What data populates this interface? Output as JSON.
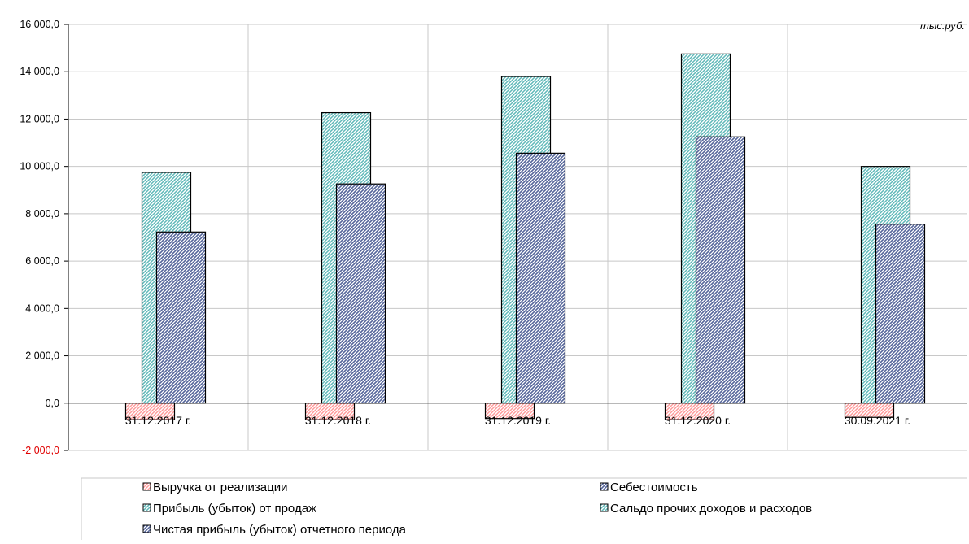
{
  "chart_data": {
    "type": "bar",
    "units_label": "тыс.руб.",
    "categories": [
      "31.12.2017 г.",
      "31.12.2018 г.",
      "31.12.2019 г.",
      "31.12.2020 г.",
      "30.09.2021 г."
    ],
    "ylim": [
      -2000,
      16000
    ],
    "yticks": [
      16000,
      14000,
      12000,
      10000,
      8000,
      6000,
      4000,
      2000,
      0,
      -2000
    ],
    "ytick_labels": [
      "16 000,0",
      "14 000,0",
      "12 000,0",
      "10 000,0",
      "8 000,0",
      "6 000,0",
      "4 000,0",
      "2 000,0",
      "0,0",
      "-2 000,0"
    ],
    "grid": true,
    "legend_position": "bottom",
    "series": [
      {
        "name": "Выручка от реализации",
        "color": "#ff9999",
        "values": [
          -700,
          -700,
          -650,
          -700,
          -600
        ]
      },
      {
        "name": "Прибыль (убыток) от продаж",
        "color": "#66cccc",
        "values": [
          9750,
          12270,
          13800,
          14750,
          10000
        ]
      },
      {
        "name": "Чистая прибыль (убыток) отчетного периода",
        "color": "#6677aa",
        "values": [
          7230,
          9260,
          10560,
          11250,
          7560
        ]
      },
      {
        "name": "Себестоимость",
        "color": "#6677aa",
        "values": [
          null,
          null,
          null,
          null,
          null
        ]
      },
      {
        "name": "Сальдо прочих доходов и расходов",
        "color": "#66cccc",
        "values": [
          null,
          null,
          null,
          null,
          null
        ]
      }
    ]
  }
}
